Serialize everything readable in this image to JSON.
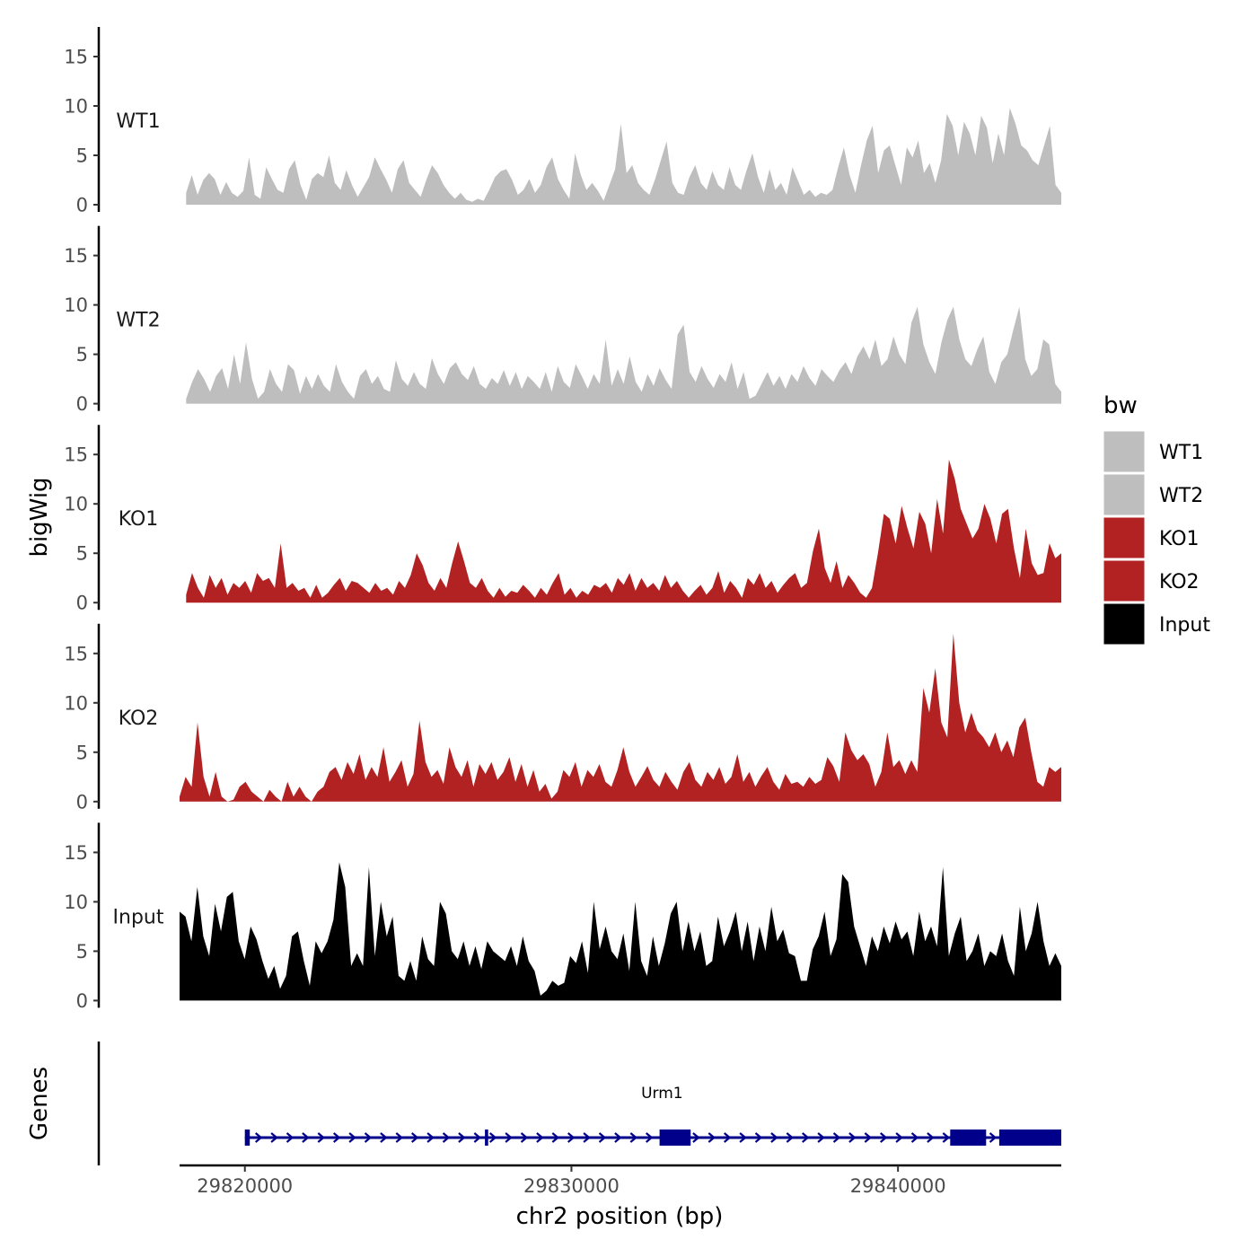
{
  "chart_data": {
    "type": "area",
    "ylabel": "bigWig",
    "xlabel": "chr2 position (bp)",
    "xlim": [
      29818000,
      29845000
    ],
    "ylim": [
      0,
      18
    ],
    "y_ticks": [
      0,
      5,
      10,
      15
    ],
    "x_ticks": [
      29820000,
      29830000,
      29840000
    ],
    "x_tick_labels": [
      "29820000",
      "29830000",
      "29840000"
    ],
    "legend": {
      "title": "bw",
      "position": "right",
      "entries": [
        {
          "label": "WT1",
          "color": "#bebebe"
        },
        {
          "label": "WT2",
          "color": "#bebebe"
        },
        {
          "label": "KO1",
          "color": "#b22222"
        },
        {
          "label": "KO2",
          "color": "#b22222"
        },
        {
          "label": "Input",
          "color": "#000000"
        }
      ]
    },
    "series": [
      {
        "name": "WT1",
        "color": "#bebebe",
        "x_start": 29818200,
        "x_end": 29845000,
        "values": [
          1.2,
          3.0,
          1.0,
          2.5,
          3.2,
          2.6,
          1.0,
          2.3,
          1.2,
          0.8,
          1.4,
          4.8,
          1.0,
          0.6,
          3.8,
          2.6,
          1.5,
          1.2,
          3.6,
          4.5,
          2.0,
          0.5,
          2.6,
          3.2,
          2.8,
          5.0,
          2.2,
          1.5,
          3.5,
          2.0,
          0.8,
          1.8,
          2.8,
          4.8,
          3.6,
          2.5,
          1.2,
          3.6,
          4.5,
          2.2,
          1.5,
          0.8,
          2.5,
          4.0,
          3.2,
          2.0,
          1.2,
          0.6,
          1.2,
          0.5,
          0.3,
          0.6,
          0.4,
          1.5,
          2.8,
          3.4,
          3.6,
          2.5,
          1.0,
          1.5,
          2.6,
          1.2,
          2.0,
          3.8,
          4.8,
          2.6,
          1.5,
          0.6,
          5.2,
          3.0,
          1.5,
          2.2,
          1.4,
          0.4,
          2.0,
          3.6,
          8.2,
          3.2,
          4.0,
          2.2,
          1.5,
          1.0,
          2.6,
          4.5,
          6.4,
          2.2,
          1.2,
          1.0,
          2.8,
          4.0,
          2.2,
          1.5,
          3.4,
          2.0,
          1.5,
          3.8,
          2.0,
          1.5,
          3.5,
          5.2,
          2.8,
          1.2,
          3.6,
          1.5,
          2.2,
          1.0,
          3.8,
          2.4,
          1.0,
          1.5,
          0.8,
          1.2,
          1.0,
          1.5,
          3.8,
          5.8,
          3.0,
          1.2,
          4.0,
          6.5,
          8.0,
          3.2,
          5.5,
          6.0,
          4.0,
          2.0,
          5.8,
          4.8,
          6.5,
          3.2,
          4.2,
          2.2,
          4.5,
          9.2,
          8.0,
          5.0,
          8.4,
          7.2,
          5.0,
          9.0,
          7.8,
          4.2,
          7.2,
          5.0,
          9.8,
          8.2,
          6.0,
          5.5,
          4.5,
          4.0,
          6.0,
          8.0,
          2.0,
          1.2
        ]
      },
      {
        "name": "WT2",
        "color": "#bebebe",
        "x_start": 29818200,
        "x_end": 29845000,
        "values": [
          0.5,
          2.2,
          3.5,
          2.5,
          1.2,
          2.8,
          3.6,
          1.5,
          5.0,
          2.0,
          6.2,
          2.5,
          0.5,
          1.2,
          3.5,
          2.0,
          1.2,
          4.0,
          3.4,
          1.0,
          2.8,
          1.5,
          3.0,
          1.8,
          1.2,
          4.0,
          2.2,
          1.2,
          0.5,
          2.8,
          3.5,
          2.0,
          2.8,
          1.5,
          1.2,
          4.4,
          2.5,
          1.8,
          3.2,
          2.0,
          1.5,
          4.6,
          3.0,
          2.0,
          3.6,
          4.2,
          3.0,
          2.4,
          3.8,
          2.0,
          1.5,
          2.6,
          2.0,
          3.4,
          1.8,
          3.2,
          1.5,
          2.8,
          2.2,
          1.5,
          3.2,
          1.2,
          3.8,
          2.2,
          1.6,
          4.0,
          2.8,
          1.5,
          3.0,
          2.0,
          6.5,
          1.8,
          3.5,
          2.0,
          4.8,
          2.2,
          1.2,
          3.0,
          1.8,
          3.6,
          2.4,
          1.5,
          7.0,
          8.0,
          3.2,
          2.2,
          3.8,
          2.5,
          1.6,
          3.0,
          2.2,
          4.2,
          1.5,
          3.2,
          0.5,
          0.8,
          2.0,
          3.2,
          1.8,
          2.8,
          1.5,
          3.0,
          2.2,
          3.8,
          2.6,
          1.8,
          3.5,
          2.8,
          2.2,
          3.4,
          4.2,
          3.0,
          4.8,
          5.8,
          4.5,
          6.5,
          3.8,
          4.5,
          6.8,
          5.0,
          4.0,
          8.2,
          9.8,
          6.0,
          4.2,
          3.0,
          6.2,
          8.5,
          9.8,
          6.5,
          4.5,
          3.8,
          5.5,
          6.8,
          3.2,
          2.0,
          4.2,
          5.0,
          7.5,
          9.8,
          4.5,
          2.8,
          3.5,
          6.5,
          6.0,
          2.0,
          1.2
        ]
      },
      {
        "name": "KO1",
        "color": "#b22222",
        "x_start": 29818200,
        "x_end": 29845000,
        "values": [
          0.8,
          3.0,
          1.5,
          0.5,
          2.8,
          1.5,
          2.5,
          0.8,
          2.0,
          1.5,
          2.2,
          1.0,
          3.0,
          2.2,
          2.5,
          1.5,
          6.0,
          1.5,
          2.0,
          1.2,
          1.5,
          0.5,
          1.8,
          0.5,
          1.0,
          1.8,
          2.5,
          1.2,
          2.2,
          2.0,
          1.5,
          1.0,
          2.0,
          1.2,
          1.5,
          0.8,
          2.2,
          1.5,
          2.8,
          5.0,
          3.8,
          2.0,
          1.2,
          2.5,
          1.5,
          4.0,
          6.2,
          4.2,
          2.0,
          1.5,
          2.5,
          1.2,
          0.5,
          1.5,
          0.6,
          1.2,
          1.0,
          1.8,
          1.2,
          0.5,
          1.5,
          0.8,
          2.0,
          3.0,
          0.8,
          1.5,
          0.5,
          1.2,
          0.8,
          1.8,
          1.5,
          2.0,
          1.0,
          2.5,
          1.8,
          3.0,
          1.2,
          2.5,
          1.5,
          2.0,
          1.2,
          2.8,
          1.5,
          2.2,
          1.2,
          0.5,
          1.2,
          1.8,
          0.8,
          1.5,
          3.2,
          1.0,
          2.2,
          1.5,
          0.5,
          2.5,
          1.8,
          3.0,
          1.5,
          2.2,
          1.0,
          1.8,
          2.5,
          3.0,
          1.5,
          2.0,
          5.2,
          7.5,
          3.5,
          2.0,
          4.2,
          1.5,
          2.8,
          2.0,
          1.0,
          0.5,
          1.5,
          5.0,
          9.0,
          8.5,
          6.0,
          9.8,
          7.5,
          5.5,
          9.2,
          8.0,
          5.0,
          10.5,
          7.0,
          14.5,
          12.5,
          9.5,
          8.0,
          6.5,
          7.5,
          10.0,
          8.5,
          6.0,
          9.0,
          9.5,
          5.5,
          2.5,
          7.5,
          4.0,
          2.8,
          3.0,
          6.0,
          4.5,
          5.0
        ]
      },
      {
        "name": "KO2",
        "color": "#b22222",
        "x_start": 29818000,
        "x_end": 29845000,
        "values": [
          0.5,
          2.5,
          1.5,
          8.0,
          2.5,
          0.5,
          3.0,
          0.5,
          0.0,
          0.2,
          1.5,
          2.0,
          1.0,
          0.5,
          0.0,
          1.2,
          0.5,
          0.0,
          2.0,
          0.5,
          1.5,
          0.5,
          0.0,
          1.0,
          1.5,
          3.0,
          3.5,
          2.2,
          4.0,
          2.8,
          4.8,
          2.2,
          3.5,
          2.5,
          5.5,
          2.0,
          3.0,
          4.2,
          1.5,
          2.8,
          8.2,
          4.0,
          2.5,
          3.2,
          1.8,
          5.5,
          3.5,
          2.5,
          4.2,
          1.5,
          3.8,
          2.8,
          4.0,
          2.2,
          3.0,
          4.5,
          2.0,
          3.8,
          1.5,
          3.2,
          1.0,
          1.8,
          0.3,
          1.0,
          3.2,
          2.5,
          4.0,
          1.5,
          3.2,
          2.5,
          3.8,
          2.0,
          1.5,
          3.2,
          5.5,
          3.0,
          1.5,
          2.5,
          3.6,
          2.2,
          1.5,
          3.0,
          2.0,
          1.2,
          3.0,
          4.0,
          2.2,
          1.5,
          3.0,
          2.2,
          3.5,
          1.8,
          2.5,
          4.8,
          2.0,
          3.0,
          1.5,
          2.6,
          3.5,
          2.0,
          1.2,
          2.8,
          1.8,
          2.0,
          1.5,
          2.5,
          1.8,
          2.2,
          4.5,
          3.6,
          2.0,
          7.0,
          5.2,
          4.2,
          4.8,
          3.8,
          1.5,
          3.0,
          7.0,
          3.5,
          4.2,
          2.8,
          4.2,
          3.0,
          11.5,
          9.0,
          13.5,
          8.0,
          6.5,
          17.0,
          10.0,
          7.0,
          9.0,
          7.2,
          6.5,
          5.5,
          7.0,
          5.0,
          6.2,
          4.5,
          7.5,
          8.5,
          5.0,
          2.0,
          1.5,
          3.5,
          3.0,
          3.5
        ]
      },
      {
        "name": "Input",
        "color": "#000000",
        "x_start": 29818000,
        "x_end": 29845000,
        "values": [
          9.0,
          8.5,
          6.0,
          11.5,
          6.5,
          4.5,
          9.8,
          7.0,
          10.5,
          11.0,
          6.0,
          4.2,
          7.5,
          6.2,
          4.0,
          2.2,
          3.5,
          1.2,
          2.5,
          6.5,
          7.0,
          4.0,
          1.5,
          6.0,
          4.8,
          6.0,
          8.2,
          14.0,
          11.5,
          3.5,
          4.8,
          3.5,
          13.5,
          4.5,
          10.0,
          6.5,
          8.5,
          2.5,
          2.0,
          4.0,
          2.0,
          6.5,
          4.2,
          3.5,
          10.0,
          8.8,
          5.0,
          4.2,
          6.0,
          3.5,
          5.5,
          3.2,
          6.0,
          5.0,
          4.5,
          4.0,
          5.5,
          3.5,
          6.5,
          4.0,
          3.0,
          0.5,
          1.0,
          2.0,
          1.5,
          1.8,
          4.5,
          3.8,
          6.0,
          2.8,
          10.0,
          5.2,
          7.5,
          5.0,
          4.2,
          6.8,
          3.0,
          10.0,
          4.0,
          2.5,
          6.5,
          3.5,
          5.8,
          8.8,
          10.0,
          5.0,
          8.0,
          5.0,
          7.0,
          3.5,
          4.0,
          8.5,
          5.5,
          7.0,
          9.0,
          5.0,
          8.0,
          4.0,
          7.5,
          5.0,
          9.5,
          6.0,
          7.2,
          4.8,
          4.5,
          2.0,
          2.0,
          5.2,
          6.5,
          9.0,
          4.5,
          6.2,
          12.8,
          12.0,
          7.5,
          5.5,
          3.5,
          6.5,
          5.0,
          7.5,
          5.8,
          8.0,
          6.2,
          7.0,
          4.5,
          9.0,
          6.0,
          7.5,
          5.5,
          13.5,
          4.5,
          6.8,
          8.5,
          4.0,
          5.0,
          6.8,
          3.5,
          5.0,
          4.5,
          6.8,
          4.0,
          2.5,
          9.5,
          5.0,
          6.8,
          10.0,
          6.0,
          3.5,
          4.8,
          3.5
        ]
      }
    ],
    "gene_track": {
      "ylabel": "Genes",
      "gene_name": "Urm1",
      "start": 29820000,
      "end": 29845000,
      "strand": "+",
      "color": "#00008b",
      "exons": [
        {
          "start": 29820000,
          "end": 29820150
        },
        {
          "start": 29827350,
          "end": 29827450
        },
        {
          "start": 29832700,
          "end": 29833650
        },
        {
          "start": 29841600,
          "end": 29842700
        },
        {
          "start": 29843100,
          "end": 29845000
        }
      ]
    }
  }
}
